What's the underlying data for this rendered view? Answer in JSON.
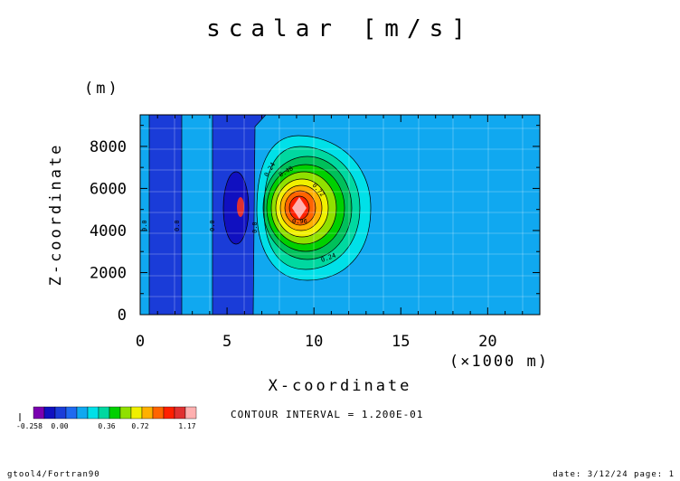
{
  "chart_data": {
    "type": "contour",
    "title": "scalar [m/s]",
    "xlabel": "X-coordinate",
    "xunit": "(×1000 m)",
    "ylabel": "Z-coordinate",
    "yunit": "(m)",
    "xlim": [
      0,
      23
    ],
    "ylim": [
      0,
      9500
    ],
    "xticks": [
      "0",
      "5",
      "10",
      "15",
      "20"
    ],
    "yticks": [
      "0",
      "2000",
      "4000",
      "6000",
      "8000"
    ],
    "contour_interval_text": "CONTOUR INTERVAL = 1.200E-01",
    "contour_line_labels": [
      "0.24",
      "0.48",
      "0.72",
      "0.96",
      "0.24",
      "0.0",
      "0.0",
      "0.0",
      "0.0"
    ],
    "colorbar": {
      "labels": [
        "-0.258",
        "0.00",
        "0.36",
        "0.72",
        "1.17"
      ],
      "colors": [
        "#7a00b0",
        "#1010c0",
        "#1a3cd8",
        "#1f6af0",
        "#10a8f0",
        "#00e0e8",
        "#00d8a0",
        "#00d000",
        "#90e000",
        "#f0f000",
        "#ffb000",
        "#ff6400",
        "#ff2000",
        "#e03030",
        "#ffb0b0"
      ]
    },
    "features": {
      "background_value": 0.04,
      "vertical_bands": [
        {
          "x_from": 0.5,
          "x_to": 2.4,
          "value": -0.05
        },
        {
          "x_from": 4.2,
          "x_to": 7.0,
          "value": -0.05
        }
      ],
      "negative_blob": {
        "x": 5.6,
        "z": 5000,
        "min": -0.258
      },
      "positive_peak": {
        "x": 9.1,
        "z": 5000,
        "max": 1.17
      }
    }
  },
  "footer": {
    "left": "gtool4/Fortran90",
    "right": "date: 3/12/24 page: 1"
  }
}
